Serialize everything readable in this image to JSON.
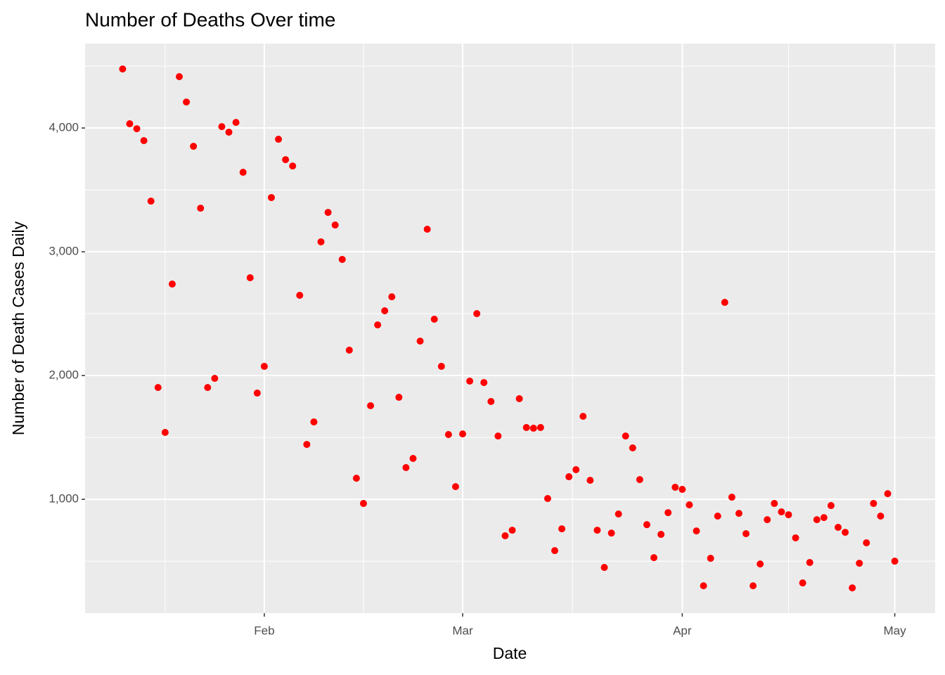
{
  "chart_data": {
    "type": "scatter",
    "title": "Number of Deaths Over time",
    "x_label": "Date",
    "y_label": "Number of Death Cases Daily",
    "color": "#ff0000",
    "grid": true,
    "xlim": [
      6.7,
      126.7
    ],
    "xticks": [
      {
        "value": 32,
        "label": "Feb"
      },
      {
        "value": 60,
        "label": "Mar"
      },
      {
        "value": 91,
        "label": "Apr"
      },
      {
        "value": 121,
        "label": "May"
      }
    ],
    "ylim": [
      80,
      4682
    ],
    "yticks": [
      {
        "value": 1000,
        "label": "1,000"
      },
      {
        "value": 2000,
        "label": "2,000"
      },
      {
        "value": 3000,
        "label": "3,000"
      },
      {
        "value": 4000,
        "label": "4,000"
      }
    ],
    "x": [
      12,
      13,
      14,
      15,
      16,
      17,
      18,
      19,
      20,
      21,
      22,
      23,
      24,
      25,
      26,
      27,
      28,
      29,
      30,
      31,
      32,
      33,
      34,
      35,
      36,
      37,
      38,
      39,
      40,
      41,
      42,
      43,
      44,
      45,
      46,
      47,
      48,
      49,
      50,
      51,
      52,
      53,
      54,
      55,
      56,
      57,
      58,
      59,
      60,
      61,
      62,
      63,
      64,
      65,
      66,
      67,
      68,
      69,
      70,
      71,
      72,
      73,
      74,
      75,
      76,
      77,
      78,
      79,
      80,
      81,
      82,
      83,
      84,
      85,
      86,
      87,
      88,
      89,
      90,
      91,
      92,
      93,
      94,
      95,
      96,
      97,
      98,
      99,
      100,
      101,
      102,
      103,
      104,
      105,
      106,
      107,
      108,
      109,
      110,
      111,
      112,
      113,
      114,
      115,
      116,
      117,
      118,
      119,
      120,
      121
    ],
    "values": [
      4477,
      4034,
      3994,
      3898,
      3409,
      1903,
      1540,
      2739,
      4415,
      4210,
      3852,
      3352,
      1903,
      1977,
      4011,
      3966,
      4045,
      3642,
      2790,
      1858,
      2074,
      3438,
      3909,
      3744,
      3693,
      2648,
      1443,
      1625,
      3080,
      3318,
      3216,
      2938,
      2205,
      1170,
      966,
      1756,
      2409,
      2523,
      2636,
      1824,
      1256,
      1330,
      2278,
      3182,
      2455,
      2074,
      1523,
      1102,
      1528,
      1955,
      2500,
      1943,
      1790,
      1511,
      705,
      750,
      1813,
      1580,
      1574,
      1580,
      1006,
      585,
      761,
      1182,
      1239,
      1670,
      1153,
      750,
      449,
      727,
      881,
      1511,
      1415,
      1159,
      795,
      528,
      716,
      892,
      1097,
      1080,
      955,
      744,
      301,
      523,
      864,
      2591,
      1017,
      886,
      722,
      301,
      477,
      835,
      966,
      898,
      875,
      688,
      324,
      489,
      835,
      852,
      949,
      773,
      733,
      284,
      483,
      648,
      966,
      864,
      1045,
      500
    ]
  }
}
